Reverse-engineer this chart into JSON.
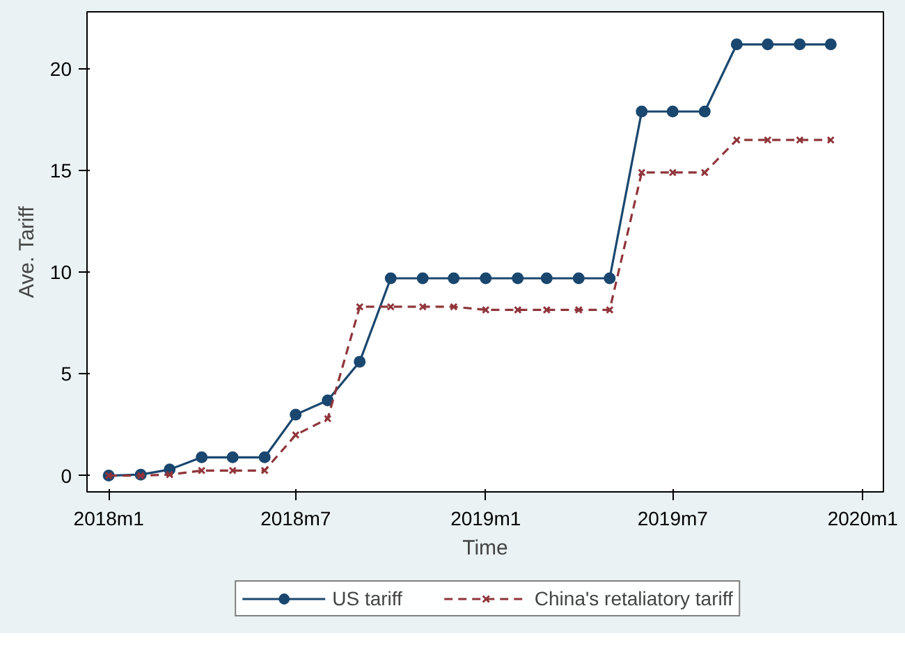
{
  "chart_data": {
    "type": "line",
    "xlabel": "Time",
    "ylabel": "Ave. Tariff",
    "x": [
      "2018-01",
      "2018-02",
      "2018-03",
      "2018-04",
      "2018-05",
      "2018-06",
      "2018-07",
      "2018-08",
      "2018-09",
      "2018-10",
      "2018-11",
      "2018-12",
      "2019-01",
      "2019-02",
      "2019-03",
      "2019-04",
      "2019-05",
      "2019-06",
      "2019-07",
      "2019-08",
      "2019-09",
      "2019-10",
      "2019-11",
      "2019-12"
    ],
    "series": [
      {
        "name": "US tariff",
        "color": "#1a476f",
        "marker": "circle",
        "line_style": "solid",
        "values": [
          0,
          0.05,
          0.3,
          0.9,
          0.9,
          0.9,
          3.0,
          3.7,
          5.6,
          9.7,
          9.7,
          9.7,
          9.7,
          9.7,
          9.7,
          9.7,
          9.7,
          17.9,
          17.9,
          17.9,
          21.2,
          21.2,
          21.2,
          21.2
        ]
      },
      {
        "name": "China's retaliatory tariff",
        "color": "#90353b",
        "marker": "cross",
        "line_style": "dashed",
        "values": [
          0,
          0,
          0.05,
          0.25,
          0.25,
          0.25,
          2.0,
          2.8,
          8.3,
          8.3,
          8.3,
          8.3,
          8.15,
          8.15,
          8.15,
          8.15,
          8.15,
          14.9,
          14.9,
          14.9,
          16.5,
          16.5,
          16.5,
          16.5
        ]
      }
    ],
    "xlim": [
      "2017-12-11",
      "2020-01-21"
    ],
    "xticks": [
      {
        "value": "2018-01",
        "label": "2018m1"
      },
      {
        "value": "2018-07",
        "label": "2018m7"
      },
      {
        "value": "2019-01",
        "label": "2019m1"
      },
      {
        "value": "2019-07",
        "label": "2019m7"
      },
      {
        "value": "2020-01",
        "label": "2020m1"
      }
    ],
    "ylim": [
      -0.8,
      22.8
    ],
    "yticks": [
      0,
      5,
      10,
      15,
      20
    ],
    "grid": false,
    "legend": "bottom"
  }
}
